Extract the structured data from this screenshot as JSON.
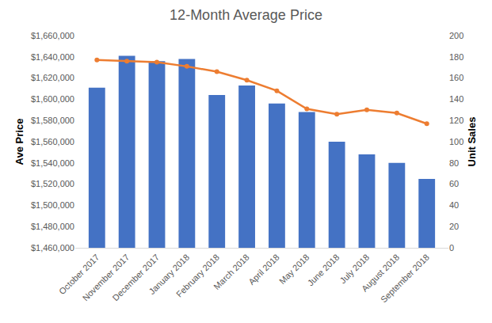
{
  "chart_data": {
    "type": "bar",
    "title": "12-Month Average Price",
    "y_label": "Ave Price",
    "y2_label": "Unit Sales",
    "categories": [
      "October 2017",
      "November 2017",
      "December 2017",
      "January 2018",
      "February 2018",
      "March 2018",
      "April 2018",
      "May 2018",
      "June 2018",
      "July 2018",
      "August 2018",
      "September 2018"
    ],
    "series": [
      {
        "type": "bar",
        "color": "#4472c4",
        "values": [
          1611000,
          1641000,
          1636000,
          1638000,
          1604000,
          1613000,
          1596000,
          1588000,
          1560000,
          1548000,
          1540000,
          1525000
        ]
      },
      {
        "type": "line",
        "color": "#ed7d31",
        "marker": "circle",
        "axis": "y2",
        "values": [
          177,
          176,
          175,
          171,
          166,
          158,
          148,
          131,
          126,
          130,
          127,
          117
        ]
      }
    ],
    "ylim": [
      1460000,
      1660000
    ],
    "yticks": [
      {
        "value": 1460000,
        "label": "$1,460,000"
      },
      {
        "value": 1480000,
        "label": "$1,480,000"
      },
      {
        "value": 1500000,
        "label": "$1,500,000"
      },
      {
        "value": 1520000,
        "label": "$1,520,000"
      },
      {
        "value": 1540000,
        "label": "$1,540,000"
      },
      {
        "value": 1560000,
        "label": "$1,560,000"
      },
      {
        "value": 1580000,
        "label": "$1,580,000"
      },
      {
        "value": 1600000,
        "label": "$1,600,000"
      },
      {
        "value": 1620000,
        "label": "$1,620,000"
      },
      {
        "value": 1640000,
        "label": "$1,640,000"
      },
      {
        "value": 1660000,
        "label": "$1,660,000"
      }
    ],
    "y2lim": [
      0,
      200
    ],
    "y2ticks": [
      0,
      20,
      40,
      60,
      80,
      100,
      120,
      140,
      160,
      180,
      200
    ],
    "grid": false
  }
}
